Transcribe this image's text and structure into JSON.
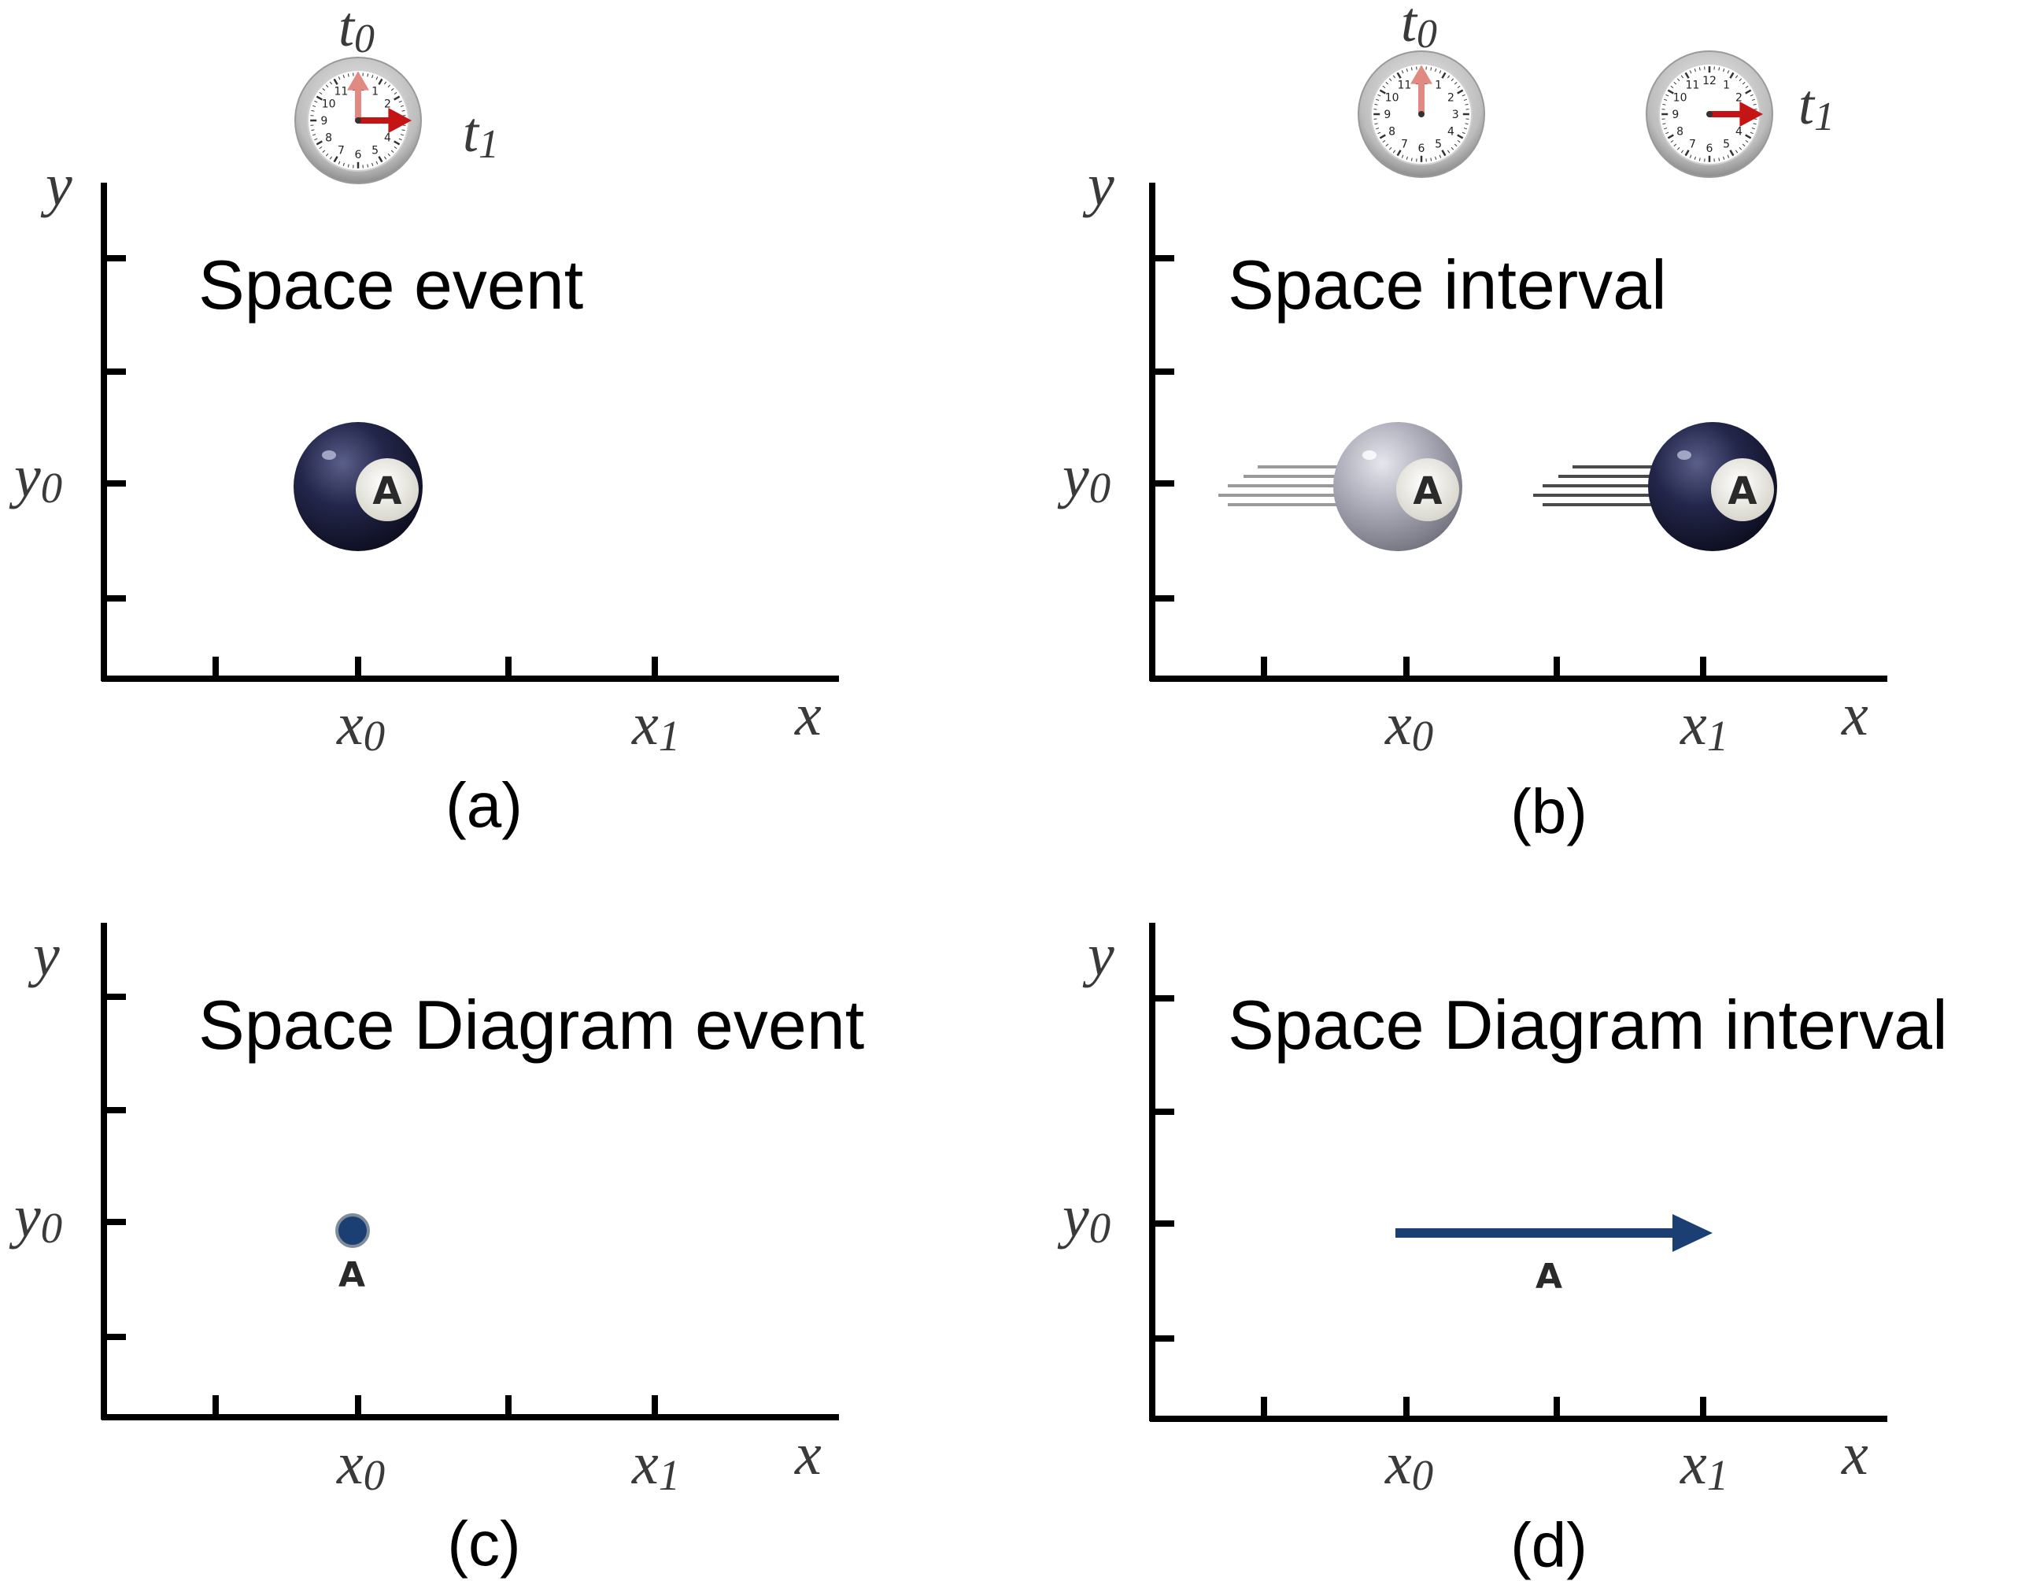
{
  "panels": [
    {
      "id": "a",
      "title": "Space event",
      "caption": "(a)",
      "clocks": [
        {
          "label": "t",
          "sub": "0"
        }
      ],
      "clock_label_right": {
        "label": "t",
        "sub": "1"
      },
      "axes": {
        "x": "x",
        "y": "y",
        "x_tick_labels": [
          {
            "label": "x",
            "sub": "0"
          },
          {
            "label": "x",
            "sub": "1"
          }
        ],
        "y_tick_label": {
          "label": "y",
          "sub": "0"
        }
      },
      "object_label": "A"
    },
    {
      "id": "b",
      "title": "Space interval",
      "caption": "(b)",
      "clocks": [
        {
          "label": "t",
          "sub": "0"
        },
        {
          "label": "t",
          "sub": "1"
        }
      ],
      "axes": {
        "x": "x",
        "y": "y",
        "x_tick_labels": [
          {
            "label": "x",
            "sub": "0"
          },
          {
            "label": "x",
            "sub": "1"
          }
        ],
        "y_tick_label": {
          "label": "y",
          "sub": "0"
        }
      },
      "object_label": "A"
    },
    {
      "id": "c",
      "title": "Space Diagram event",
      "caption": "(c)",
      "axes": {
        "x": "x",
        "y": "y",
        "x_tick_labels": [
          {
            "label": "x",
            "sub": "0"
          },
          {
            "label": "x",
            "sub": "1"
          }
        ],
        "y_tick_label": {
          "label": "y",
          "sub": "0"
        }
      },
      "object_label": "A"
    },
    {
      "id": "d",
      "title": "Space Diagram interval",
      "caption": "(d)",
      "axes": {
        "x": "x",
        "y": "y",
        "x_tick_labels": [
          {
            "label": "x",
            "sub": "0"
          },
          {
            "label": "x",
            "sub": "1"
          }
        ],
        "y_tick_label": {
          "label": "y",
          "sub": "0"
        }
      },
      "object_label": "A"
    }
  ],
  "colors": {
    "axis": "#000000",
    "ball_dark": "#1d1f3a",
    "ball_ghost": "#9a9aa8",
    "point_fill": "#1b3f72",
    "arrow": "#1b3f72",
    "hand_red": "#c41414",
    "hand_faded": "#e08a82"
  }
}
